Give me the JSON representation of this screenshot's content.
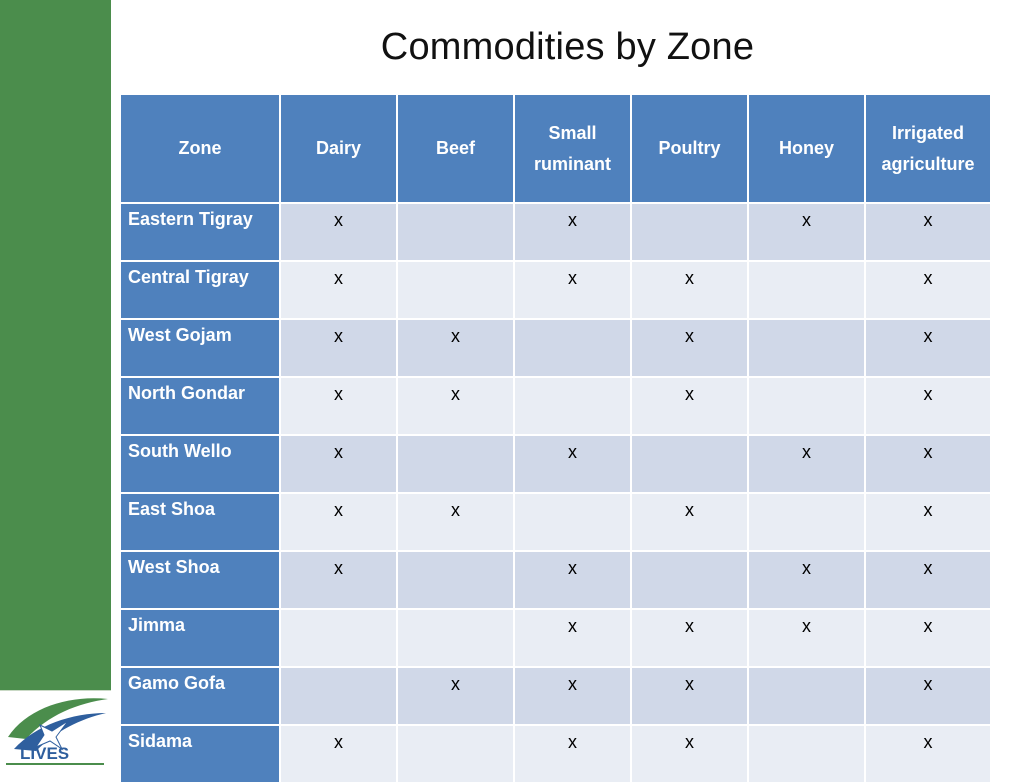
{
  "slide": {
    "title": "Commodities by Zone"
  },
  "table": {
    "headers": [
      "Zone",
      "Dairy",
      "Beef",
      "Small ruminant",
      "Poultry",
      "Honey",
      "Irrigated agriculture"
    ],
    "rows": [
      {
        "zone": "Eastern Tigray",
        "cells": [
          "x",
          "",
          "x",
          "",
          "x",
          "x"
        ]
      },
      {
        "zone": "Central Tigray",
        "cells": [
          "x",
          "",
          "x",
          "x",
          "",
          "x"
        ]
      },
      {
        "zone": "West Gojam",
        "cells": [
          "x",
          "x",
          "",
          "x",
          "",
          "x"
        ]
      },
      {
        "zone": "North Gondar",
        "cells": [
          "x",
          "x",
          "",
          "x",
          "",
          "x"
        ]
      },
      {
        "zone": "South Wello",
        "cells": [
          "x",
          "",
          "x",
          "",
          "x",
          "x"
        ]
      },
      {
        "zone": "East Shoa",
        "cells": [
          "x",
          "x",
          "",
          "x",
          "",
          "x"
        ]
      },
      {
        "zone": "West Shoa",
        "cells": [
          "x",
          "",
          "x",
          "",
          "x",
          "x"
        ]
      },
      {
        "zone": "Jimma",
        "cells": [
          "",
          "",
          "x",
          "x",
          "x",
          "x"
        ]
      },
      {
        "zone": "Gamo Gofa",
        "cells": [
          "",
          "x",
          "x",
          "x",
          "",
          "x"
        ]
      },
      {
        "zone": "Sidama",
        "cells": [
          "x",
          "",
          "x",
          "x",
          "",
          "x"
        ]
      }
    ]
  },
  "logo": {
    "text": "LIVES",
    "icon": "lives-logo-icon"
  },
  "colors": {
    "sidebar": "#4b8d4c",
    "header": "#4f81bd",
    "row_odd": "#d0d8e8",
    "row_even": "#e9edf4"
  }
}
